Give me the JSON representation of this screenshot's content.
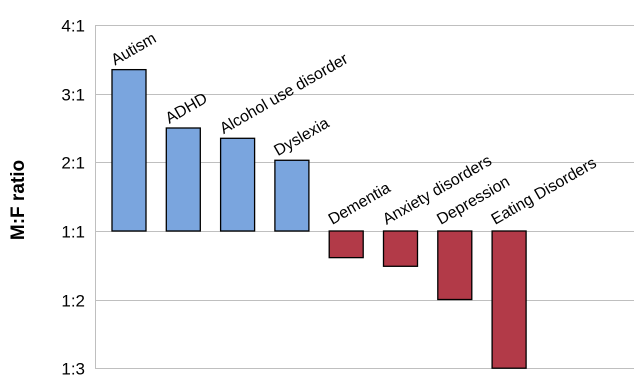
{
  "chart_data": {
    "type": "bar",
    "ylabel": "M:F ratio",
    "y_ticks": [
      "4:1",
      "3:1",
      "2:1",
      "1:1",
      "1:2",
      "1:3"
    ],
    "y_tick_values": [
      4,
      3,
      2,
      1,
      0.5,
      0.333
    ],
    "ylim": [
      0.333,
      4
    ],
    "y_scale": "ratio (reciprocal below 1:1, baseline 1:1)",
    "grid": true,
    "categories": [
      "Autism",
      "ADHD",
      "Alcohol use disorder",
      "Dyslexia",
      "Dementia",
      "Anxiety disorders",
      "Depression",
      "Eating Disorders"
    ],
    "values": [
      3.35,
      2.5,
      2.35,
      2.03,
      0.72,
      0.66,
      0.5,
      0.333
    ],
    "colors": {
      "male_biased": "#7aa5de",
      "female_biased": "#b23a48",
      "bar_outline": "#000000",
      "grid": "#bfbfbf"
    }
  }
}
